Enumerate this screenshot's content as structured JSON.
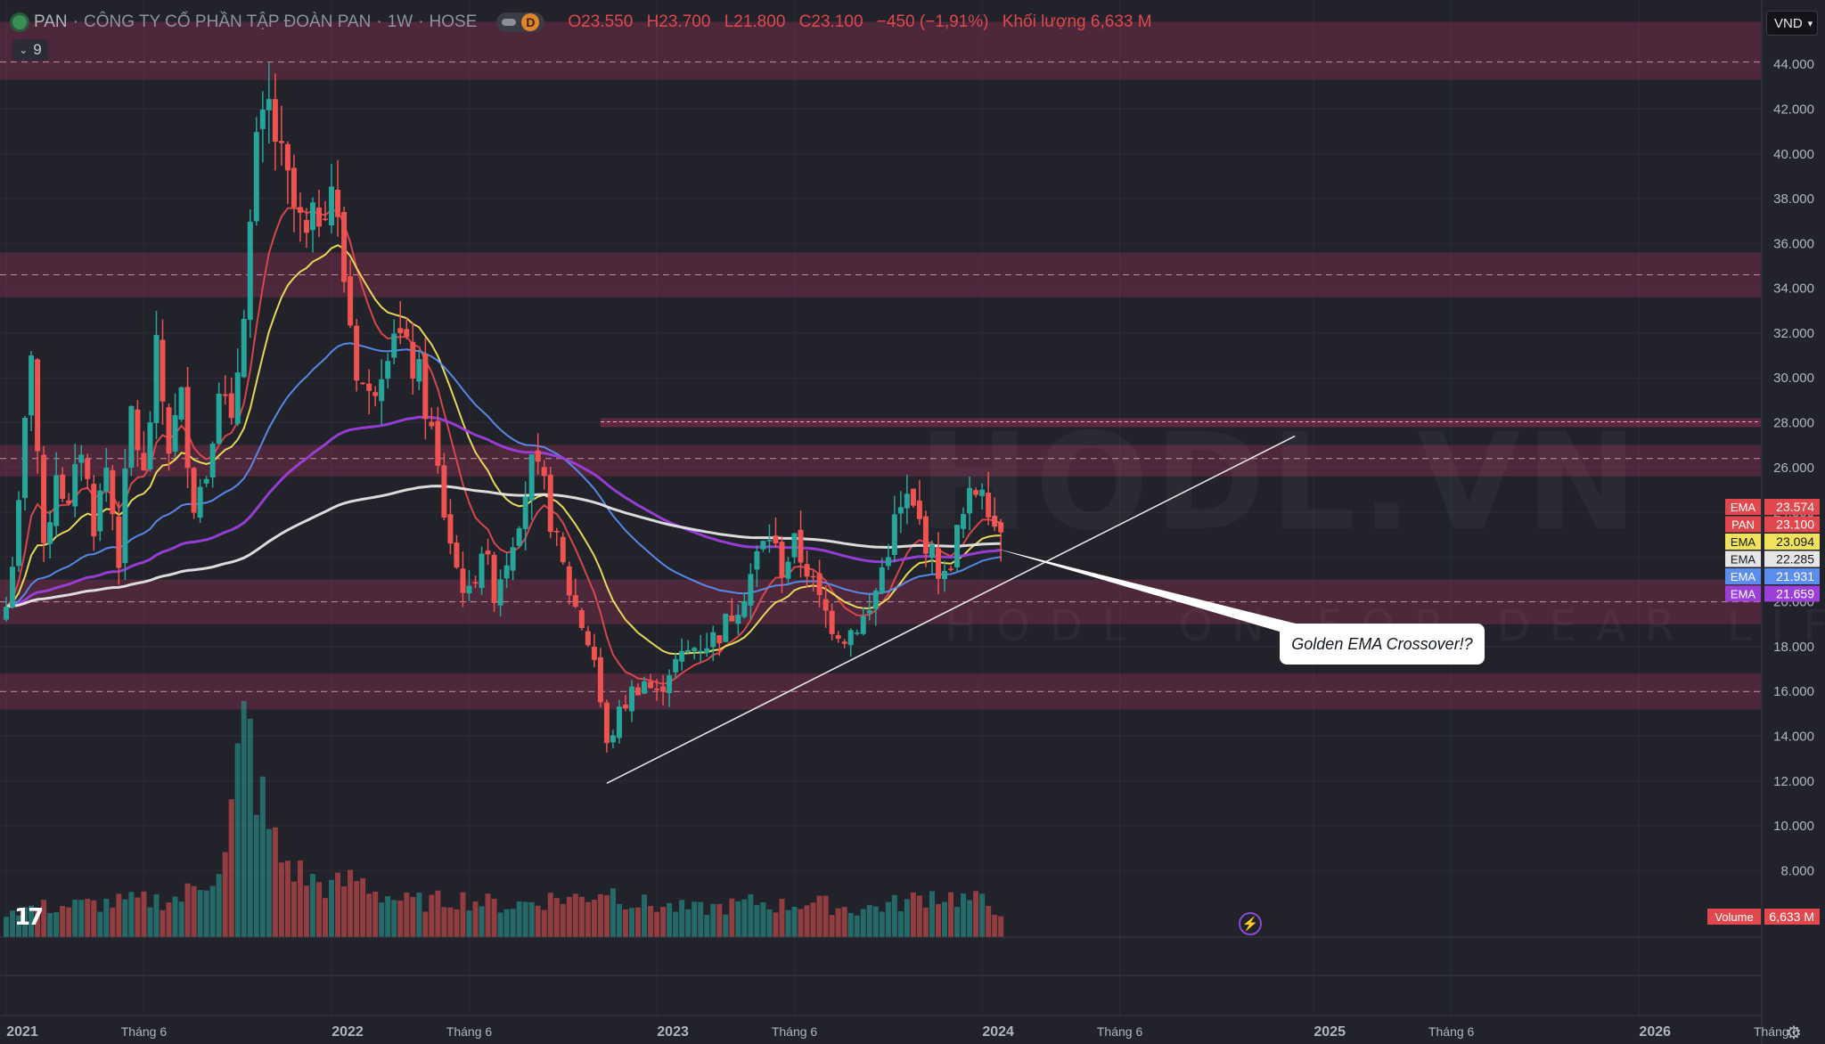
{
  "header": {
    "symbol": "PAN",
    "company": "CÔNG TY CỔ PHẦN TẬP ĐOÀN PAN",
    "interval": "1W",
    "exchange": "HOSE",
    "separator": "·",
    "d_badge": "D",
    "ohlc": {
      "open": "O23.550",
      "high": "H23.700",
      "low": "L21.800",
      "close": "C23.100",
      "change": "−450 (−1,91%)",
      "volume_label": "Khối lượng",
      "volume": "6,633 M"
    },
    "collapse_count": "9",
    "currency": "VND",
    "watermark": "HODL.VN",
    "watermark_sub": "HODL ON FOR DEAR LIFE"
  },
  "colors": {
    "background": "#22222b",
    "zone": "#a8325a",
    "up": "#26a69a",
    "down": "#ef5350",
    "ema_red": "#e0484d",
    "ema_yellow": "#f0e35a",
    "ema_white": "#e6e6e6",
    "ema_blue": "#5b8def",
    "ema_purple": "#9c3fd9"
  },
  "callout": {
    "text": "Golden EMA Crossover!?"
  },
  "chart_data": {
    "type": "candlestick",
    "title": "PAN · CÔNG TY CỔ PHẦN TẬP ĐOÀN PAN · 1W · HOSE",
    "y_ticks": [
      "44.000",
      "42.000",
      "40.000",
      "38.000",
      "36.000",
      "34.000",
      "32.000",
      "30.000",
      "28.000",
      "26.000",
      "24.000",
      "22.000",
      "20.000",
      "18.000",
      "16.000",
      "14.000",
      "12.000",
      "10.000",
      "8.000"
    ],
    "ylim": [
      7000,
      45500
    ],
    "x_ticks": [
      {
        "label": "2021",
        "bold": true,
        "t": 0
      },
      {
        "label": "Tháng 6",
        "bold": false,
        "t": 22
      },
      {
        "label": "2022",
        "bold": true,
        "t": 52
      },
      {
        "label": "Tháng 6",
        "bold": false,
        "t": 74
      },
      {
        "label": "2023",
        "bold": true,
        "t": 104
      },
      {
        "label": "Tháng 6",
        "bold": false,
        "t": 126
      },
      {
        "label": "2024",
        "bold": true,
        "t": 156
      },
      {
        "label": "Tháng 6",
        "bold": false,
        "t": 178
      },
      {
        "label": "2025",
        "bold": true,
        "t": 209
      },
      {
        "label": "Tháng 6",
        "bold": false,
        "t": 231
      },
      {
        "label": "2026",
        "bold": true,
        "t": 261
      },
      {
        "label": "Tháng 6",
        "bold": false,
        "t": 283
      }
    ],
    "zones": [
      {
        "low": 43300,
        "high": 46300,
        "line": 44100
      },
      {
        "low": 33600,
        "high": 35600,
        "line": 34600
      },
      {
        "low": 25600,
        "high": 27000,
        "line": 26400
      },
      {
        "low": 19000,
        "high": 21000,
        "line": 20000
      },
      {
        "low": 15200,
        "high": 16800,
        "line": 16000
      }
    ],
    "resistance_line": {
      "y": 28000,
      "t_start": 95
    },
    "trendline": {
      "t0": 96,
      "v0": 11900,
      "t1": 206,
      "v1": 27400
    },
    "price_labels": [
      {
        "name": "EMA",
        "value": "23.574",
        "color": "#e0484d"
      },
      {
        "name": "PAN",
        "value": "23.100",
        "color": "#e0484d"
      },
      {
        "name": "EMA",
        "value": "23.094",
        "color": "#f0e35a"
      },
      {
        "name": "EMA",
        "value": "22.285",
        "color": "#e6e6e6"
      },
      {
        "name": "EMA",
        "value": "21.931",
        "color": "#5b8def"
      },
      {
        "name": "EMA",
        "value": "21.659",
        "color": "#9c3fd9"
      }
    ],
    "price_label_values": [
      23574,
      23100,
      23094,
      22285,
      21931,
      21659
    ],
    "volume_label": {
      "name": "Volume",
      "value": "6,633 M"
    },
    "keyframes": [
      [
        0,
        19800
      ],
      [
        2,
        24000
      ],
      [
        4,
        31500
      ],
      [
        6,
        22000
      ],
      [
        8,
        26000
      ],
      [
        10,
        24000
      ],
      [
        12,
        27000
      ],
      [
        14,
        23500
      ],
      [
        16,
        26000
      ],
      [
        18,
        22000
      ],
      [
        20,
        28500
      ],
      [
        22,
        25500
      ],
      [
        24,
        31000
      ],
      [
        26,
        27000
      ],
      [
        28,
        29000
      ],
      [
        30,
        24500
      ],
      [
        32,
        25800
      ],
      [
        34,
        30000
      ],
      [
        36,
        27500
      ],
      [
        38,
        33500
      ],
      [
        40,
        40000
      ],
      [
        42,
        42000
      ],
      [
        44,
        39500
      ],
      [
        46,
        37500
      ],
      [
        48,
        36000
      ],
      [
        50,
        37500
      ],
      [
        52,
        38800
      ],
      [
        54,
        34500
      ],
      [
        56,
        30500
      ],
      [
        58,
        29000
      ],
      [
        60,
        30800
      ],
      [
        62,
        32500
      ],
      [
        64,
        31000
      ],
      [
        66,
        30000
      ],
      [
        68,
        27500
      ],
      [
        70,
        24000
      ],
      [
        72,
        21500
      ],
      [
        74,
        20200
      ],
      [
        76,
        22500
      ],
      [
        78,
        20500
      ],
      [
        80,
        22000
      ],
      [
        82,
        24000
      ],
      [
        84,
        26000
      ],
      [
        86,
        25000
      ],
      [
        88,
        22500
      ],
      [
        90,
        20500
      ],
      [
        92,
        19000
      ],
      [
        94,
        17500
      ],
      [
        96,
        13500
      ],
      [
        98,
        15000
      ],
      [
        100,
        16000
      ],
      [
        102,
        16500
      ],
      [
        104,
        15800
      ],
      [
        106,
        17000
      ],
      [
        108,
        17500
      ],
      [
        110,
        18000
      ],
      [
        112,
        18200
      ],
      [
        114,
        18600
      ],
      [
        116,
        19500
      ],
      [
        118,
        20500
      ],
      [
        120,
        22000
      ],
      [
        122,
        23000
      ],
      [
        124,
        21500
      ],
      [
        126,
        22500
      ],
      [
        128,
        21500
      ],
      [
        130,
        20000
      ],
      [
        132,
        19000
      ],
      [
        134,
        18500
      ],
      [
        136,
        19000
      ],
      [
        138,
        19500
      ],
      [
        140,
        21500
      ],
      [
        142,
        23500
      ],
      [
        144,
        24500
      ],
      [
        146,
        23500
      ],
      [
        148,
        22000
      ],
      [
        150,
        21000
      ],
      [
        152,
        23000
      ],
      [
        154,
        24500
      ],
      [
        156,
        25500
      ],
      [
        158,
        23500
      ],
      [
        159,
        23100
      ]
    ],
    "emas": [
      {
        "period": 10,
        "color": "#e0484d"
      },
      {
        "period": 20,
        "color": "#f0e35a"
      },
      {
        "period": 50,
        "color": "#5b8def"
      },
      {
        "period": 100,
        "color": "#9c3fd9"
      },
      {
        "period": 200,
        "color": "#e6e6e6"
      }
    ],
    "volume_keyframes": [
      [
        0,
        14
      ],
      [
        10,
        16
      ],
      [
        20,
        18
      ],
      [
        28,
        20
      ],
      [
        32,
        30
      ],
      [
        35,
        40
      ],
      [
        37,
        85
      ],
      [
        38,
        120
      ],
      [
        39,
        100
      ],
      [
        40,
        80
      ],
      [
        42,
        55
      ],
      [
        44,
        40
      ],
      [
        48,
        30
      ],
      [
        52,
        25
      ],
      [
        56,
        30
      ],
      [
        60,
        22
      ],
      [
        64,
        18
      ],
      [
        68,
        18
      ],
      [
        72,
        20
      ],
      [
        76,
        18
      ],
      [
        80,
        16
      ],
      [
        84,
        18
      ],
      [
        88,
        20
      ],
      [
        92,
        20
      ],
      [
        96,
        25
      ],
      [
        100,
        18
      ],
      [
        104,
        16
      ],
      [
        110,
        14
      ],
      [
        116,
        16
      ],
      [
        120,
        18
      ],
      [
        124,
        16
      ],
      [
        128,
        18
      ],
      [
        132,
        16
      ],
      [
        136,
        14
      ],
      [
        140,
        16
      ],
      [
        144,
        18
      ],
      [
        148,
        22
      ],
      [
        152,
        20
      ],
      [
        156,
        18
      ],
      [
        159,
        14
      ]
    ],
    "volume_scale_max": 100
  }
}
